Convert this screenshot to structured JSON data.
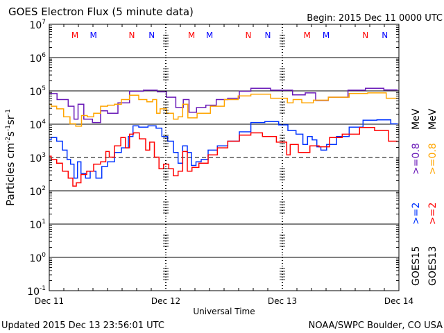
{
  "header": {
    "title": "GOES Electron Flux (5 minute data)",
    "begin": "Begin: 2015 Dec 11 0000 UTC"
  },
  "footer": {
    "updated": "Updated 2015 Dec 13 23:56:01 UTC",
    "credit": "NOAA/SWPC Boulder, CO USA"
  },
  "chart_data": {
    "type": "line",
    "title": "GOES Electron Flux (5 minute data)",
    "xlabel": "Universal Time",
    "ylabel": "Particles cm-2 s-1 sr-1",
    "yscale": "log",
    "ylim_log10": [
      -1,
      7
    ],
    "xlim_hours": [
      0,
      72
    ],
    "x_ticks": [
      {
        "hour": 0,
        "label": "Dec 11"
      },
      {
        "hour": 24,
        "label": "Dec 12"
      },
      {
        "hour": 48,
        "label": "Dec 13"
      },
      {
        "hour": 72,
        "label": "Dec 14"
      }
    ],
    "y_ticks": [
      {
        "exp": 7,
        "base": "10",
        "sup": "7"
      },
      {
        "exp": 6,
        "base": "10",
        "sup": "6"
      },
      {
        "exp": 5,
        "base": "10",
        "sup": "5"
      },
      {
        "exp": 4,
        "base": "10",
        "sup": "4"
      },
      {
        "exp": 3,
        "base": "10",
        "sup": "3"
      },
      {
        "exp": 2,
        "base": "10",
        "sup": "2"
      },
      {
        "exp": 1,
        "base": "10",
        "sup": "1"
      },
      {
        "exp": 0,
        "base": "10",
        "sup": "0"
      },
      {
        "exp": -1,
        "base": "10",
        "sup": "-1"
      }
    ],
    "threshold_log10": 3,
    "markers": [
      {
        "hour": 5.3,
        "label": "M",
        "color": "#ff0000"
      },
      {
        "hour": 9.1,
        "label": "M",
        "color": "#0000ff"
      },
      {
        "hour": 17.0,
        "label": "N",
        "color": "#ff0000"
      },
      {
        "hour": 21.1,
        "label": "N",
        "color": "#0000ff"
      },
      {
        "hour": 29.3,
        "label": "M",
        "color": "#ff0000"
      },
      {
        "hour": 33.0,
        "label": "M",
        "color": "#0000ff"
      },
      {
        "hour": 41.0,
        "label": "N",
        "color": "#ff0000"
      },
      {
        "hour": 45.0,
        "label": "N",
        "color": "#0000ff"
      },
      {
        "hour": 53.1,
        "label": "M",
        "color": "#ff0000"
      },
      {
        "hour": 57.0,
        "label": "M",
        "color": "#0000ff"
      },
      {
        "hour": 65.1,
        "label": "N",
        "color": "#ff0000"
      },
      {
        "hour": 69.1,
        "label": "N",
        "color": "#0000ff"
      }
    ],
    "legend": {
      "placement": "right",
      "columns": [
        {
          "satellite": "GOES15",
          "e2": ">=2",
          "e08": ">=0.8",
          "unit": "MeV",
          "e2_color": "#0033ff",
          "e08_color": "#6a1ab8"
        },
        {
          "satellite": "GOES13",
          "e2": ">=2",
          "e08": ">=0.8",
          "unit": "MeV",
          "e2_color": "#ff0000",
          "e08_color": "#ffa500"
        }
      ]
    },
    "series": [
      {
        "name": "GOES15 >=0.8 MeV",
        "color": "#6a1ab8",
        "hours": [
          0,
          3.19,
          4.62,
          5.57,
          6.29,
          7.95,
          9.86,
          11.29,
          12.71,
          15.57,
          17.48,
          21.29,
          23.19,
          25.1,
          27.0,
          28.19,
          29.38,
          31.29,
          33.19,
          35.57,
          37.95,
          40.33,
          42.71,
          48.43,
          51.76,
          53.67,
          56.05,
          58.9,
          64.14,
          66.05,
          71.76
        ],
        "log10_flux": [
          4.92,
          4.74,
          4.54,
          4.15,
          4.6,
          4.15,
          4.05,
          4.4,
          4.33,
          4.64,
          4.99,
          5.02,
          4.97,
          4.81,
          4.5,
          4.74,
          4.36,
          4.5,
          4.57,
          4.74,
          4.78,
          4.99,
          5.08,
          5.02,
          4.88,
          4.94,
          4.71,
          4.81,
          5.02,
          5.08,
          5.03
        ]
      },
      {
        "name": "GOES13 >=0.8 MeV",
        "color": "#ffa500",
        "hours": [
          0,
          0.81,
          2.24,
          3.67,
          4.86,
          6.05,
          7.24,
          8.43,
          9.86,
          11.29,
          12.71,
          14.14,
          15.57,
          17.48,
          19.38,
          20.81,
          21.76,
          22.48,
          23.19,
          25.1,
          26.05,
          27.0,
          27.95,
          29.14,
          31.76,
          34.62,
          37.48,
          40.33,
          42.71,
          48.43,
          49.62,
          50.81,
          53.19,
          55.57,
          59.38,
          64.14,
          67.0,
          71.76
        ],
        "log10_flux": [
          4.6,
          4.54,
          4.46,
          4.22,
          4.01,
          3.94,
          4.26,
          4.22,
          4.33,
          4.54,
          4.57,
          4.6,
          4.74,
          4.87,
          4.74,
          4.67,
          4.74,
          4.33,
          4.46,
          4.33,
          4.15,
          4.22,
          4.6,
          4.19,
          4.33,
          4.54,
          4.74,
          4.85,
          4.9,
          4.78,
          4.64,
          4.74,
          4.64,
          4.72,
          4.81,
          4.92,
          4.94,
          4.78
        ]
      },
      {
        "name": "GOES15 >=2 MeV",
        "color": "#0033ff",
        "hours": [
          0,
          0.81,
          2.24,
          3.19,
          4.14,
          4.62,
          5.57,
          6.05,
          7.0,
          7.95,
          8.9,
          10.33,
          11.29,
          12.71,
          14.14,
          15.57,
          17.0,
          17.48,
          19.38,
          21.29,
          22.71,
          23.67,
          25.1,
          26.05,
          27.0,
          27.95,
          28.9,
          29.62,
          30.81,
          31.76,
          33.67,
          35.57,
          37.95,
          40.33,
          42.71,
          46.05,
          48.43,
          49.86,
          51.76,
          52.71,
          53.67,
          54.62,
          55.57,
          56.29,
          57.95,
          60.33,
          63.19,
          66.05,
          68.9,
          71.76
        ],
        "log10_flux": [
          3.53,
          3.6,
          3.49,
          3.22,
          2.94,
          2.8,
          2.38,
          2.87,
          2.52,
          2.38,
          2.59,
          2.38,
          2.73,
          2.87,
          3.15,
          3.29,
          3.63,
          3.95,
          3.91,
          3.95,
          3.88,
          3.63,
          3.49,
          3.15,
          2.83,
          3.35,
          3.15,
          2.76,
          2.87,
          2.94,
          3.22,
          3.35,
          3.49,
          3.77,
          4.05,
          4.08,
          3.98,
          3.81,
          3.7,
          3.39,
          3.63,
          3.53,
          3.32,
          3.22,
          3.39,
          3.63,
          3.91,
          4.12,
          4.13,
          4.01
        ]
      },
      {
        "name": "GOES13 >=2 MeV",
        "color": "#ff0000",
        "hours": [
          0,
          0.81,
          2.24,
          3.19,
          4.62,
          5.1,
          6.05,
          7.0,
          8.43,
          9.86,
          11.29,
          12.0,
          12.71,
          14.14,
          15.33,
          16.05,
          17.0,
          17.71,
          19.38,
          20.33,
          21.05,
          22.24,
          22.95,
          24.14,
          25.1,
          26.05,
          27.0,
          27.95,
          28.9,
          29.86,
          31.76,
          33.67,
          35.57,
          37.95,
          40.33,
          42.71,
          45.1,
          48.43,
          49.38,
          49.86,
          52.71,
          54.62,
          56.52,
          58.9,
          61.76,
          66.05,
          67.95,
          71.76
        ],
        "log10_flux": [
          3.04,
          2.94,
          2.83,
          2.59,
          2.38,
          2.14,
          2.24,
          2.49,
          2.59,
          2.8,
          2.87,
          3.18,
          3.01,
          3.35,
          3.6,
          3.29,
          3.7,
          3.74,
          3.56,
          3.22,
          3.46,
          3.01,
          2.66,
          2.8,
          2.66,
          2.45,
          2.59,
          3.18,
          2.59,
          2.7,
          2.83,
          3.08,
          3.29,
          3.49,
          3.67,
          3.74,
          3.63,
          3.46,
          3.08,
          3.39,
          3.15,
          3.35,
          3.32,
          3.6,
          3.7,
          3.9,
          3.81,
          3.49
        ]
      }
    ]
  }
}
